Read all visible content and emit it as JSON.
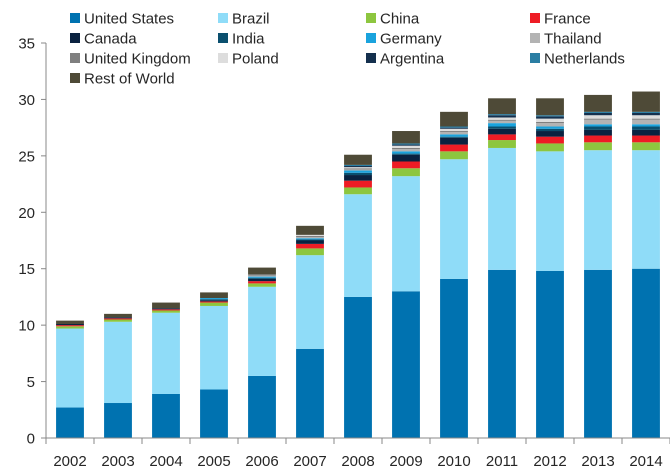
{
  "chart_data": {
    "type": "bar",
    "stacked": true,
    "categories": [
      "2002",
      "2003",
      "2004",
      "2005",
      "2006",
      "2007",
      "2008",
      "2009",
      "2010",
      "2011",
      "2012",
      "2013",
      "2014"
    ],
    "ylim": [
      0,
      35
    ],
    "yticks": [
      0,
      5,
      10,
      15,
      20,
      25,
      30,
      35
    ],
    "xlabel": "",
    "ylabel": "",
    "title": "",
    "grid": false,
    "legend_position": "top",
    "series": [
      {
        "name": "United States",
        "color": "#0072b0",
        "values": [
          2.7,
          3.1,
          3.9,
          4.3,
          5.5,
          7.9,
          12.5,
          13.0,
          14.1,
          14.9,
          14.8,
          14.9,
          15.0
        ]
      },
      {
        "name": "Brazil",
        "color": "#8fdcf8",
        "values": [
          7.0,
          7.2,
          7.2,
          7.4,
          7.9,
          8.3,
          9.1,
          10.2,
          10.6,
          10.8,
          10.6,
          10.6,
          10.5
        ]
      },
      {
        "name": "China",
        "color": "#8dc63f",
        "values": [
          0.2,
          0.2,
          0.2,
          0.3,
          0.3,
          0.6,
          0.6,
          0.7,
          0.7,
          0.7,
          0.7,
          0.7,
          0.7
        ]
      },
      {
        "name": "France",
        "color": "#ee1c25",
        "values": [
          0.1,
          0.1,
          0.1,
          0.1,
          0.2,
          0.4,
          0.6,
          0.6,
          0.6,
          0.5,
          0.6,
          0.6,
          0.6
        ]
      },
      {
        "name": "Canada",
        "color": "#0a2240",
        "values": [
          0.1,
          0.1,
          0.1,
          0.1,
          0.2,
          0.3,
          0.5,
          0.6,
          0.6,
          0.5,
          0.5,
          0.5,
          0.5
        ]
      },
      {
        "name": "India",
        "color": "#0a4f6e",
        "values": [
          0.0,
          0.0,
          0.0,
          0.1,
          0.1,
          0.1,
          0.2,
          0.1,
          0.1,
          0.2,
          0.2,
          0.3,
          0.3
        ]
      },
      {
        "name": "Germany",
        "color": "#1aa3dd",
        "values": [
          0.0,
          0.0,
          0.0,
          0.1,
          0.1,
          0.1,
          0.2,
          0.2,
          0.2,
          0.3,
          0.2,
          0.2,
          0.2
        ]
      },
      {
        "name": "Thailand",
        "color": "#b3b3b3",
        "values": [
          0.0,
          0.0,
          0.0,
          0.0,
          0.1,
          0.1,
          0.1,
          0.2,
          0.2,
          0.2,
          0.3,
          0.4,
          0.4
        ]
      },
      {
        "name": "United Kingdom",
        "color": "#7f7f7f",
        "values": [
          0.0,
          0.0,
          0.0,
          0.0,
          0.1,
          0.1,
          0.1,
          0.1,
          0.1,
          0.1,
          0.1,
          0.1,
          0.1
        ]
      },
      {
        "name": "Poland",
        "color": "#dddddd",
        "values": [
          0.0,
          0.0,
          0.0,
          0.0,
          0.0,
          0.1,
          0.1,
          0.2,
          0.2,
          0.2,
          0.3,
          0.3,
          0.3
        ]
      },
      {
        "name": "Argentina",
        "color": "#14304e",
        "values": [
          0.0,
          0.0,
          0.0,
          0.0,
          0.0,
          0.0,
          0.1,
          0.1,
          0.1,
          0.2,
          0.2,
          0.2,
          0.2
        ]
      },
      {
        "name": "Netherlands",
        "color": "#2a7ea3",
        "values": [
          0.0,
          0.0,
          0.0,
          0.0,
          0.0,
          0.0,
          0.1,
          0.1,
          0.1,
          0.1,
          0.1,
          0.1,
          0.1
        ]
      },
      {
        "name": "Rest of World",
        "color": "#4e4a37",
        "values": [
          0.3,
          0.3,
          0.5,
          0.5,
          0.6,
          0.8,
          0.9,
          1.1,
          1.3,
          1.4,
          1.5,
          1.5,
          1.8
        ]
      }
    ]
  }
}
